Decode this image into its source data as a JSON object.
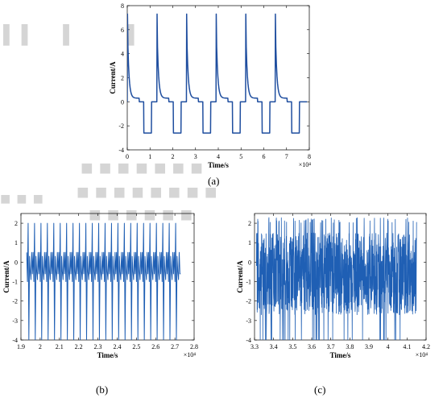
{
  "panels": {
    "a": "(a)",
    "b": "(b)",
    "c": "(c)"
  },
  "chart_data": [
    {
      "id": "a",
      "type": "line",
      "xlabel": "Time/s",
      "ylabel": "Current/A",
      "x_multiplier": "×10⁴",
      "xlim": [
        0,
        8
      ],
      "ylim": [
        -4,
        8
      ],
      "xticks": [
        0,
        1,
        2,
        3,
        4,
        5,
        6,
        7,
        8
      ],
      "yticks": [
        -4,
        -2,
        0,
        2,
        4,
        6,
        8
      ],
      "grid": false,
      "color": "#1f4e9f",
      "pattern": "pulse charge/discharge cycles: spike to ~7.3 A with exponential relaxation toward ~0.3 A, short rest at 0 A, then constant discharge at -2.6 A",
      "cycle_starts": [
        0.0,
        1.3,
        2.6,
        3.9,
        5.2,
        6.5
      ],
      "peak": 7.3,
      "discharge": -2.6,
      "series": [
        {
          "values": []
        }
      ]
    },
    {
      "id": "b",
      "type": "line",
      "xlabel": "Time/s",
      "ylabel": "Current/A",
      "x_multiplier": "×10⁴",
      "xlim": [
        1.9,
        2.8
      ],
      "ylim": [
        -4,
        2.5
      ],
      "xticks": [
        1.9,
        2,
        2.1,
        2.2,
        2.3,
        2.4,
        2.5,
        2.6,
        2.7,
        2.8
      ],
      "yticks": [
        -4,
        -3,
        -2,
        -1,
        0,
        1,
        2
      ],
      "grid": false,
      "color": "#1f5fb4",
      "data_range": [
        1.93,
        2.73
      ],
      "pattern": "regular periodic pulses between -4 and 2 A around a band at roughly -0.6 A",
      "series": [
        {
          "values": []
        }
      ]
    },
    {
      "id": "c",
      "type": "line",
      "xlabel": "Time/s",
      "ylabel": "Current/A",
      "x_multiplier": "×10⁴",
      "xlim": [
        3.3,
        4.2
      ],
      "ylim": [
        -4,
        2.5
      ],
      "xticks": [
        3.3,
        3.4,
        3.5,
        3.6,
        3.7,
        3.8,
        3.9,
        4,
        4.1,
        4.2
      ],
      "yticks": [
        -4,
        -3,
        -2,
        -1,
        0,
        1,
        2
      ],
      "grid": false,
      "color": "#1f5fb4",
      "data_range": [
        3.31,
        4.15
      ],
      "pattern": "dense random current profile between -4 and 2.3 A",
      "series": [
        {
          "values": []
        }
      ]
    }
  ]
}
